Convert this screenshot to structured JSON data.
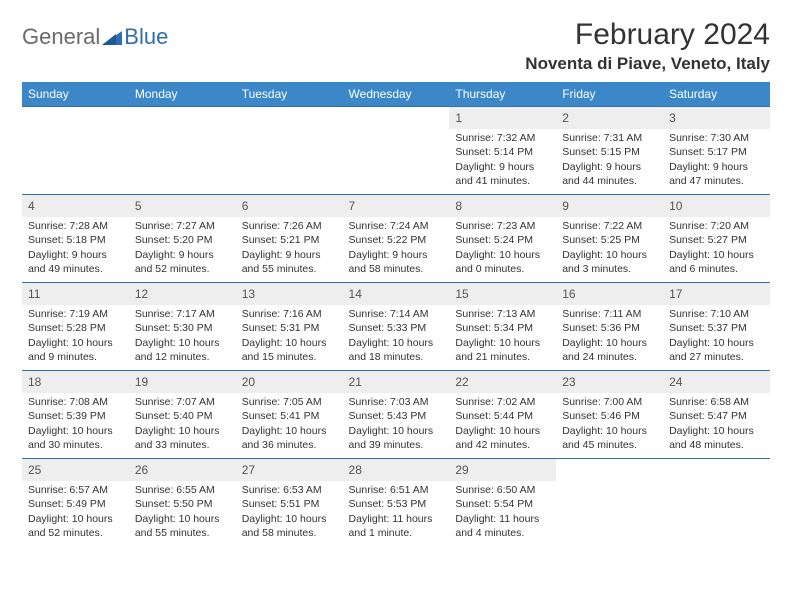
{
  "logo": {
    "part1": "General",
    "part2": "Blue"
  },
  "title": "February 2024",
  "location": "Noventa di Piave, Veneto, Italy",
  "colors": {
    "header_bg": "#3b87c8",
    "row_border": "#2f6fb0",
    "daynum_bg": "#eeeeee",
    "text": "#333333",
    "logo_gray": "#6a6a6a",
    "logo_blue": "#2f6fb0"
  },
  "weekdays": [
    "Sunday",
    "Monday",
    "Tuesday",
    "Wednesday",
    "Thursday",
    "Friday",
    "Saturday"
  ],
  "weeks": [
    [
      null,
      null,
      null,
      null,
      {
        "n": "1",
        "sunrise": "7:32 AM",
        "sunset": "5:14 PM",
        "daylight": "9 hours and 41 minutes."
      },
      {
        "n": "2",
        "sunrise": "7:31 AM",
        "sunset": "5:15 PM",
        "daylight": "9 hours and 44 minutes."
      },
      {
        "n": "3",
        "sunrise": "7:30 AM",
        "sunset": "5:17 PM",
        "daylight": "9 hours and 47 minutes."
      }
    ],
    [
      {
        "n": "4",
        "sunrise": "7:28 AM",
        "sunset": "5:18 PM",
        "daylight": "9 hours and 49 minutes."
      },
      {
        "n": "5",
        "sunrise": "7:27 AM",
        "sunset": "5:20 PM",
        "daylight": "9 hours and 52 minutes."
      },
      {
        "n": "6",
        "sunrise": "7:26 AM",
        "sunset": "5:21 PM",
        "daylight": "9 hours and 55 minutes."
      },
      {
        "n": "7",
        "sunrise": "7:24 AM",
        "sunset": "5:22 PM",
        "daylight": "9 hours and 58 minutes."
      },
      {
        "n": "8",
        "sunrise": "7:23 AM",
        "sunset": "5:24 PM",
        "daylight": "10 hours and 0 minutes."
      },
      {
        "n": "9",
        "sunrise": "7:22 AM",
        "sunset": "5:25 PM",
        "daylight": "10 hours and 3 minutes."
      },
      {
        "n": "10",
        "sunrise": "7:20 AM",
        "sunset": "5:27 PM",
        "daylight": "10 hours and 6 minutes."
      }
    ],
    [
      {
        "n": "11",
        "sunrise": "7:19 AM",
        "sunset": "5:28 PM",
        "daylight": "10 hours and 9 minutes."
      },
      {
        "n": "12",
        "sunrise": "7:17 AM",
        "sunset": "5:30 PM",
        "daylight": "10 hours and 12 minutes."
      },
      {
        "n": "13",
        "sunrise": "7:16 AM",
        "sunset": "5:31 PM",
        "daylight": "10 hours and 15 minutes."
      },
      {
        "n": "14",
        "sunrise": "7:14 AM",
        "sunset": "5:33 PM",
        "daylight": "10 hours and 18 minutes."
      },
      {
        "n": "15",
        "sunrise": "7:13 AM",
        "sunset": "5:34 PM",
        "daylight": "10 hours and 21 minutes."
      },
      {
        "n": "16",
        "sunrise": "7:11 AM",
        "sunset": "5:36 PM",
        "daylight": "10 hours and 24 minutes."
      },
      {
        "n": "17",
        "sunrise": "7:10 AM",
        "sunset": "5:37 PM",
        "daylight": "10 hours and 27 minutes."
      }
    ],
    [
      {
        "n": "18",
        "sunrise": "7:08 AM",
        "sunset": "5:39 PM",
        "daylight": "10 hours and 30 minutes."
      },
      {
        "n": "19",
        "sunrise": "7:07 AM",
        "sunset": "5:40 PM",
        "daylight": "10 hours and 33 minutes."
      },
      {
        "n": "20",
        "sunrise": "7:05 AM",
        "sunset": "5:41 PM",
        "daylight": "10 hours and 36 minutes."
      },
      {
        "n": "21",
        "sunrise": "7:03 AM",
        "sunset": "5:43 PM",
        "daylight": "10 hours and 39 minutes."
      },
      {
        "n": "22",
        "sunrise": "7:02 AM",
        "sunset": "5:44 PM",
        "daylight": "10 hours and 42 minutes."
      },
      {
        "n": "23",
        "sunrise": "7:00 AM",
        "sunset": "5:46 PM",
        "daylight": "10 hours and 45 minutes."
      },
      {
        "n": "24",
        "sunrise": "6:58 AM",
        "sunset": "5:47 PM",
        "daylight": "10 hours and 48 minutes."
      }
    ],
    [
      {
        "n": "25",
        "sunrise": "6:57 AM",
        "sunset": "5:49 PM",
        "daylight": "10 hours and 52 minutes."
      },
      {
        "n": "26",
        "sunrise": "6:55 AM",
        "sunset": "5:50 PM",
        "daylight": "10 hours and 55 minutes."
      },
      {
        "n": "27",
        "sunrise": "6:53 AM",
        "sunset": "5:51 PM",
        "daylight": "10 hours and 58 minutes."
      },
      {
        "n": "28",
        "sunrise": "6:51 AM",
        "sunset": "5:53 PM",
        "daylight": "11 hours and 1 minute."
      },
      {
        "n": "29",
        "sunrise": "6:50 AM",
        "sunset": "5:54 PM",
        "daylight": "11 hours and 4 minutes."
      },
      null,
      null
    ]
  ],
  "labels": {
    "sunrise": "Sunrise: ",
    "sunset": "Sunset: ",
    "daylight": "Daylight: "
  }
}
